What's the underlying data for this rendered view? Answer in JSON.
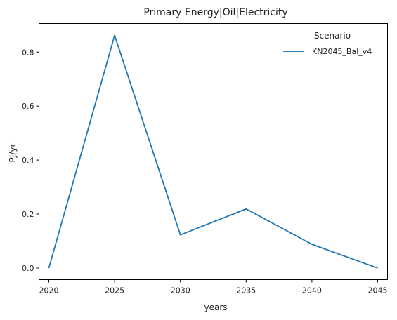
{
  "chart_data": {
    "type": "line",
    "title": "Primary Energy|Oil|Electricity",
    "xlabel": "years",
    "ylabel": "PJ/yr",
    "x": [
      2020,
      2025,
      2030,
      2035,
      2040,
      2045
    ],
    "xlim": [
      2019.25,
      2045.75
    ],
    "ylim": [
      -0.043,
      0.906
    ],
    "xticks": [
      2020,
      2025,
      2030,
      2035,
      2040,
      2045
    ],
    "yticks": [
      0.0,
      0.2,
      0.4,
      0.6,
      0.8
    ],
    "ytick_labels": [
      "0.0",
      "0.2",
      "0.4",
      "0.6",
      "0.8"
    ],
    "grid": false,
    "legend": {
      "title": "Scenario",
      "placement": "top-right"
    },
    "series": [
      {
        "name": "KN2045_Bal_v4",
        "color": "#1f77b4",
        "values": [
          0.0,
          0.862,
          0.123,
          0.219,
          0.088,
          0.0
        ]
      }
    ]
  }
}
